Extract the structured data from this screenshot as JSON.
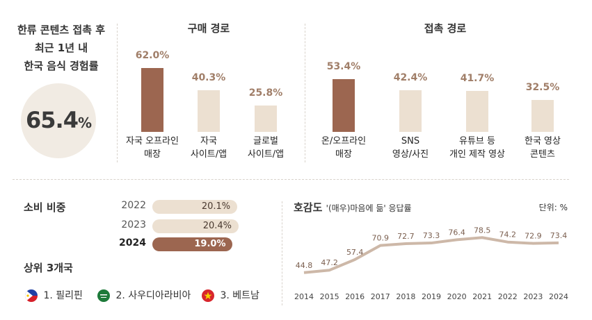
{
  "left_panel": {
    "title_lines": [
      "한류 콘텐츠 접촉 후",
      "최근 1년 내",
      "한국 음식 경험률"
    ],
    "value": "65.4",
    "unit": "%"
  },
  "chart_data": [
    {
      "type": "bar",
      "title": "구매 경로",
      "categories": [
        "자국 오프라인\n매장",
        "자국\n사이트/앱",
        "글로벌\n사이트/앱"
      ],
      "category_lines": [
        [
          "자국 오프라인",
          "매장"
        ],
        [
          "자국",
          "사이트/앱"
        ],
        [
          "글로벌",
          "사이트/앱"
        ]
      ],
      "values": [
        62.0,
        40.3,
        25.8
      ],
      "value_labels": [
        "62.0%",
        "40.3%",
        "25.8%"
      ],
      "highlight_index": 0
    },
    {
      "type": "bar",
      "title": "접촉 경로",
      "categories": [
        "온/오프라인\n매장",
        "SNS\n영상/사진",
        "유튜브 등\n개인 제작 영상",
        "한국 영상\n콘텐츠"
      ],
      "category_lines": [
        [
          "온/오프라인",
          "매장"
        ],
        [
          "SNS",
          "영상/사진"
        ],
        [
          "유튜브 등",
          "개인 제작 영상"
        ],
        [
          "한국 영상",
          "콘텐츠"
        ]
      ],
      "values": [
        53.4,
        42.4,
        41.7,
        32.5
      ],
      "value_labels": [
        "53.4%",
        "42.4%",
        "41.7%",
        "32.5%"
      ],
      "highlight_index": 0
    },
    {
      "type": "bar",
      "title": "소비 비중",
      "categories": [
        "2022",
        "2023",
        "2024"
      ],
      "values": [
        20.1,
        20.4,
        19.0
      ],
      "value_labels": [
        "20.1%",
        "20.4%",
        "19.0%"
      ],
      "highlight_index": 2
    },
    {
      "type": "line",
      "title": "호감도",
      "subtitle": "'(매우)마음에 듦' 응답률",
      "unit_label": "단위: %",
      "x": [
        "2014",
        "2015",
        "2016",
        "2017",
        "2018",
        "2019",
        "2020",
        "2021",
        "2022",
        "2023",
        "2024"
      ],
      "values": [
        44.8,
        47.2,
        57.4,
        70.9,
        72.7,
        73.3,
        76.4,
        78.5,
        74.2,
        72.9,
        73.4
      ],
      "value_labels": [
        "44.8",
        "47.2",
        "57.4",
        "70.9",
        "72.7",
        "73.3",
        "76.4",
        "78.5",
        "74.2",
        "72.9",
        "73.4"
      ],
      "ylim": [
        40,
        80
      ],
      "color": "#cdb8a8"
    }
  ],
  "top3": {
    "title": "상위 3개국",
    "countries": [
      {
        "label": "1. 필리핀",
        "flag": "philippines-flag"
      },
      {
        "label": "2. 사우디아라비아",
        "flag": "saudi-arabia-flag"
      },
      {
        "label": "3. 베트남",
        "flag": "vietnam-flag"
      }
    ]
  },
  "colors": {
    "dark_bar": "#9c6650",
    "light_bar": "#ece0d1",
    "value_text": "#a07e68",
    "line": "#cdb8a8"
  }
}
